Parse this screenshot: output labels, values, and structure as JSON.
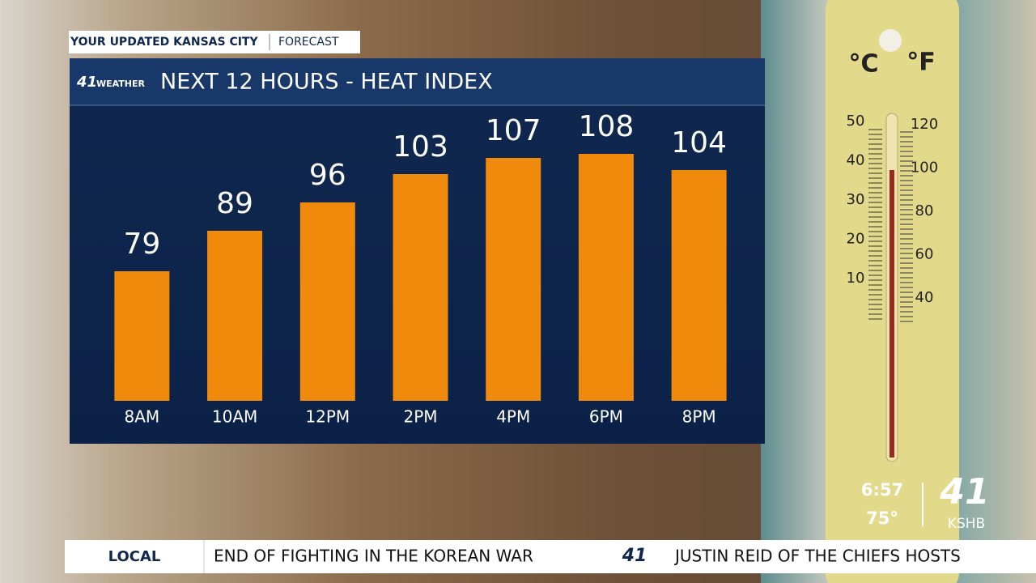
{
  "header": {
    "station": "YOUR UPDATED KANSAS CITY",
    "section": "FORECAST"
  },
  "panel": {
    "logo_number": "41",
    "logo_word": "WEATHER"
  },
  "chart_data": {
    "type": "bar",
    "title": "NEXT 12 HOURS - HEAT INDEX",
    "categories": [
      "8AM",
      "10AM",
      "12PM",
      "2PM",
      "4PM",
      "6PM",
      "8PM"
    ],
    "values": [
      79,
      89,
      96,
      103,
      107,
      108,
      104
    ],
    "color": "#ef8a0c",
    "ylim": [
      47,
      120
    ]
  },
  "thermometer": {
    "celsius": "°C",
    "fahrenheit": "°F",
    "celsius_marks": [
      50,
      40,
      30,
      20,
      10
    ],
    "fahrenheit_marks": [
      120,
      100,
      80,
      60,
      40
    ]
  },
  "status": {
    "time": "6:57",
    "temperature": "75°",
    "logo_number": "41",
    "call_sign": "KSHB"
  },
  "ticker": {
    "section": "LOCAL",
    "headline": "END OF FIGHTING IN THE KOREAN WAR",
    "logo": "41",
    "next_headline": "JUSTIN REID OF THE CHIEFS HOSTS"
  }
}
